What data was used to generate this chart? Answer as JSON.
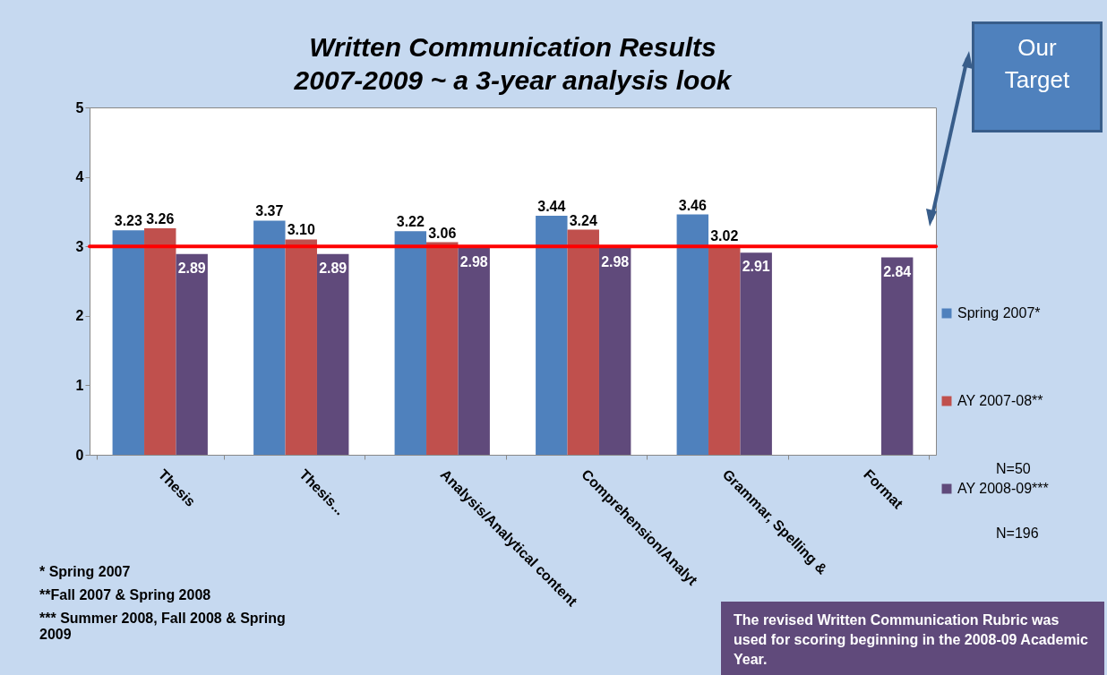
{
  "chart_data": {
    "type": "bar",
    "title": "Written Communication Results\n2007-2009 ~ a 3-year analysis look",
    "categories": [
      "Thesis",
      "Thesis...",
      "Analysis/Analytical content",
      "Comprehension/Analyt",
      "Grammar, Spelling &",
      "Format"
    ],
    "series": [
      {
        "name": "Spring 2007*",
        "color": "#4f81bd",
        "values": [
          3.23,
          3.37,
          3.22,
          3.44,
          3.46,
          null
        ],
        "value_labels": [
          "3.23",
          "3.37",
          "3.22",
          "3.44",
          "3.46",
          null
        ]
      },
      {
        "name": "AY 2007-08**",
        "color": "#c0504d",
        "values": [
          3.26,
          3.1,
          3.06,
          3.24,
          3.02,
          null
        ],
        "value_labels": [
          "3.26",
          "3.10",
          "3.06",
          "3.24",
          "3.02",
          null
        ]
      },
      {
        "name": "AY 2008-09***",
        "color": "#604a7b",
        "values": [
          2.89,
          2.89,
          2.98,
          2.98,
          2.91,
          2.84
        ],
        "value_labels": [
          "2.89",
          "2.89",
          "2.98",
          "2.98",
          "2.91",
          "2.84"
        ]
      }
    ],
    "ylim": [
      0,
      5
    ],
    "yticks": [
      0,
      1,
      2,
      3,
      4,
      5
    ],
    "grid": false,
    "legend": "right",
    "ref_lines": [
      {
        "axis": "y",
        "value": 3,
        "color": "#ff0000"
      }
    ],
    "annotations": [
      "N=50",
      "N=196",
      "* Spring 2007",
      "**Fall 2007 & Spring 2008",
      "*** Summer 2008, Fall 2008 & Spring 2009",
      "The revised Written Communication Rubric was used for scoring beginning in the 2008-09 Academic Year.",
      "Our Target"
    ]
  }
}
